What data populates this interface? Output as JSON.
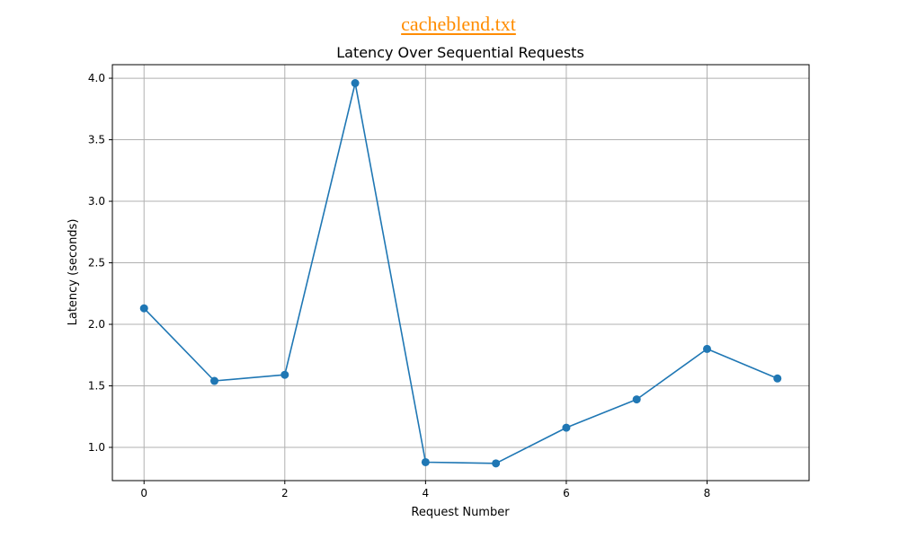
{
  "header": {
    "file_link": "cacheblend.txt"
  },
  "chart_data": {
    "type": "line",
    "title": "Latency Over Sequential Requests",
    "xlabel": "Request Number",
    "ylabel": "Latency (seconds)",
    "x": [
      0,
      1,
      2,
      3,
      4,
      5,
      6,
      7,
      8,
      9
    ],
    "series": [
      {
        "values": [
          2.13,
          1.54,
          1.59,
          3.96,
          0.88,
          0.87,
          1.16,
          1.39,
          1.8,
          1.56
        ],
        "color": "#1f77b4",
        "marker": "circle"
      }
    ],
    "xlim": [
      -0.45,
      9.45
    ],
    "ylim": [
      0.73,
      4.11
    ],
    "xticks": [
      0,
      2,
      4,
      6,
      8
    ],
    "yticks": [
      1.0,
      1.5,
      2.0,
      2.5,
      3.0,
      3.5,
      4.0
    ],
    "grid": true,
    "colors": {
      "grid": "#b0b0b0",
      "axes": "#000000",
      "file_link": "#ff8c00"
    }
  }
}
